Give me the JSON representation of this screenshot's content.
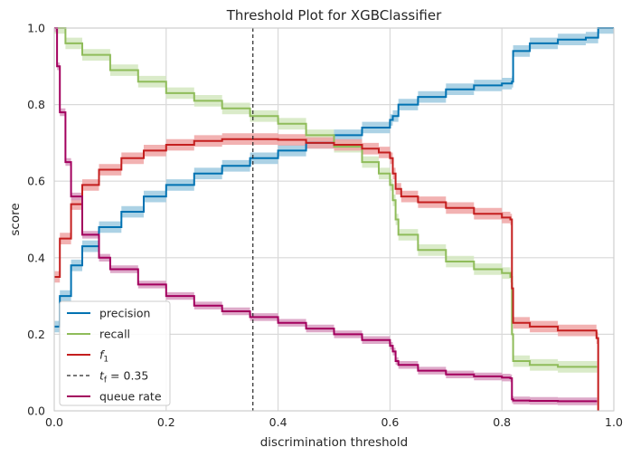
{
  "chart_data": {
    "type": "line",
    "title": "Threshold Plot for XGBClassifier",
    "xlabel": "discrimination threshold",
    "ylabel": "score",
    "xlim": [
      0,
      1
    ],
    "ylim": [
      0,
      1
    ],
    "grid": true,
    "legend_position": "lower-left",
    "x_ticks": [
      "0.0",
      "0.2",
      "0.4",
      "0.6",
      "0.8",
      "1.0"
    ],
    "y_ticks": [
      "0.0",
      "0.2",
      "0.4",
      "0.6",
      "0.8",
      "1.0"
    ],
    "series": [
      {
        "name": "precision",
        "color": "#0072b2",
        "band_color": "#9ecae1",
        "band": 0.015,
        "x": [
          0,
          0.01,
          0.03,
          0.05,
          0.08,
          0.12,
          0.16,
          0.2,
          0.25,
          0.3,
          0.35,
          0.4,
          0.45,
          0.5,
          0.55,
          0.6,
          0.605,
          0.615,
          0.65,
          0.7,
          0.75,
          0.8,
          0.818,
          0.82,
          0.85,
          0.9,
          0.95,
          0.971,
          0.972,
          1.0
        ],
        "y": [
          0.22,
          0.3,
          0.38,
          0.43,
          0.48,
          0.52,
          0.56,
          0.59,
          0.62,
          0.64,
          0.66,
          0.68,
          0.7,
          0.72,
          0.74,
          0.76,
          0.77,
          0.8,
          0.82,
          0.84,
          0.85,
          0.855,
          0.86,
          0.94,
          0.96,
          0.97,
          0.975,
          0.975,
          1.0,
          1.0
        ]
      },
      {
        "name": "recall",
        "color": "#8fbc5a",
        "band_color": "#d3e8bf",
        "band": 0.015,
        "x": [
          0,
          0.02,
          0.05,
          0.1,
          0.15,
          0.2,
          0.25,
          0.3,
          0.35,
          0.4,
          0.45,
          0.5,
          0.55,
          0.58,
          0.6,
          0.605,
          0.61,
          0.615,
          0.65,
          0.7,
          0.75,
          0.8,
          0.815,
          0.818,
          0.82,
          0.85,
          0.9,
          0.97
        ],
        "y": [
          1.0,
          0.96,
          0.93,
          0.89,
          0.86,
          0.83,
          0.81,
          0.79,
          0.77,
          0.75,
          0.72,
          0.69,
          0.65,
          0.62,
          0.59,
          0.55,
          0.5,
          0.46,
          0.42,
          0.39,
          0.37,
          0.36,
          0.35,
          0.2,
          0.13,
          0.12,
          0.115,
          0.115
        ]
      },
      {
        "name": "f_1",
        "label_main": "f",
        "label_sub": "1",
        "color": "#c41e1e",
        "band_color": "#f0a5a5",
        "band": 0.015,
        "x": [
          0,
          0.01,
          0.03,
          0.05,
          0.08,
          0.12,
          0.16,
          0.2,
          0.25,
          0.3,
          0.35,
          0.4,
          0.45,
          0.5,
          0.55,
          0.58,
          0.6,
          0.605,
          0.61,
          0.62,
          0.65,
          0.7,
          0.75,
          0.8,
          0.815,
          0.818,
          0.82,
          0.85,
          0.9,
          0.968,
          0.969,
          0.972
        ],
        "y": [
          0.35,
          0.45,
          0.54,
          0.59,
          0.63,
          0.66,
          0.68,
          0.695,
          0.705,
          0.71,
          0.71,
          0.708,
          0.7,
          0.695,
          0.685,
          0.675,
          0.66,
          0.62,
          0.58,
          0.56,
          0.545,
          0.53,
          0.515,
          0.505,
          0.5,
          0.32,
          0.23,
          0.22,
          0.21,
          0.21,
          0.19,
          0.0
        ]
      },
      {
        "name": "t_f = 0.35",
        "label_main": "t",
        "label_sub": "f",
        "label_rest": " = 0.35",
        "color": "#262626",
        "dashed": true,
        "threshold": 0.355
      },
      {
        "name": "queue rate",
        "color": "#a3005e",
        "band_color": "#d89ac0",
        "band": 0.01,
        "x": [
          0,
          0.005,
          0.01,
          0.02,
          0.03,
          0.05,
          0.08,
          0.1,
          0.15,
          0.2,
          0.25,
          0.3,
          0.35,
          0.4,
          0.45,
          0.5,
          0.55,
          0.6,
          0.605,
          0.61,
          0.615,
          0.65,
          0.7,
          0.75,
          0.8,
          0.815,
          0.818,
          0.82,
          0.85,
          0.9,
          0.97
        ],
        "y": [
          1.0,
          0.9,
          0.78,
          0.65,
          0.56,
          0.46,
          0.4,
          0.37,
          0.33,
          0.3,
          0.275,
          0.26,
          0.245,
          0.23,
          0.215,
          0.2,
          0.185,
          0.17,
          0.155,
          0.13,
          0.12,
          0.105,
          0.095,
          0.09,
          0.087,
          0.085,
          0.03,
          0.027,
          0.026,
          0.025,
          0.025
        ]
      }
    ]
  }
}
